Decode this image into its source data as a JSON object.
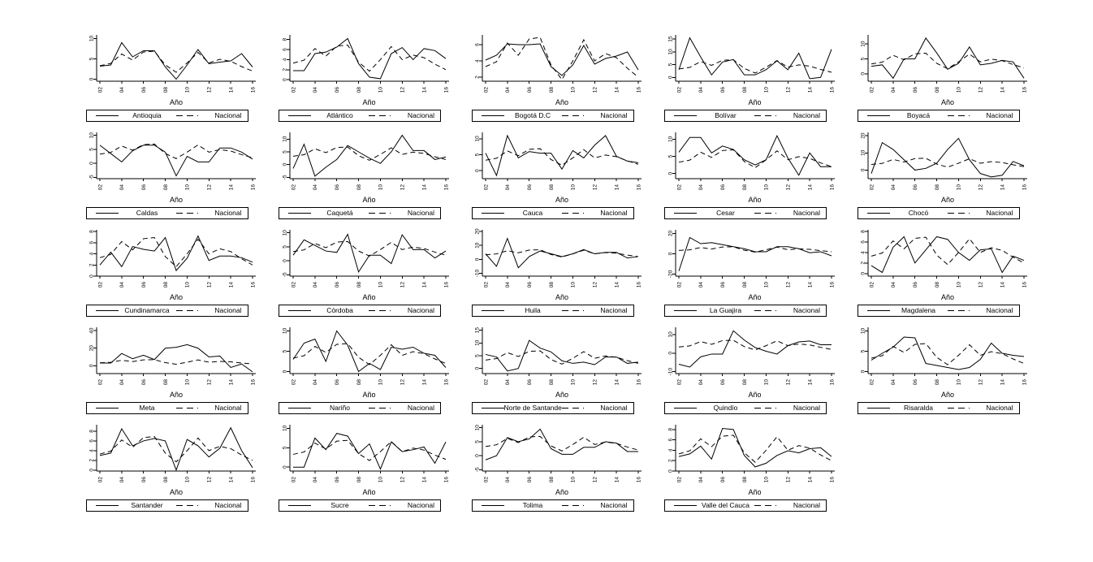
{
  "figure": {
    "background": "#ffffff",
    "line_color": "#000000",
    "grid": {
      "rows": 5,
      "cols": 5,
      "filled_panels": 24
    }
  },
  "chart_data": {
    "type": "line",
    "title": "",
    "x_label": "Año",
    "x_tick_labels": [
      "02",
      "04",
      "06",
      "08",
      "10",
      "12",
      "14",
      "16"
    ],
    "years": [
      2002,
      2003,
      2004,
      2005,
      2006,
      2007,
      2008,
      2009,
      2010,
      2011,
      2012,
      2013,
      2014,
      2015,
      2016
    ],
    "legend_position": "below",
    "grid_lines": false,
    "series_styles": {
      "department": "solid",
      "nacional": "dashed"
    },
    "nacional_label": "Nacional",
    "nacional": [
      3.3,
      3.9,
      6.2,
      4.7,
      6.7,
      6.9,
      3.5,
      1.7,
      4.0,
      6.6,
      4.0,
      4.9,
      4.4,
      3.1,
      2.0
    ],
    "charts": [
      {
        "name": "Antioquia",
        "y_ticks": [
          0,
          5,
          10
        ],
        "ylim": [
          -0.5,
          10.5
        ],
        "values": [
          3.2,
          3.5,
          9.0,
          5.5,
          7.0,
          7.0,
          3.0,
          0.0,
          3.5,
          7.3,
          3.8,
          4.2,
          4.5,
          6.3,
          3.0
        ]
      },
      {
        "name": "Atlántico",
        "y_ticks": [
          0,
          2,
          4,
          6,
          8
        ],
        "ylim": [
          -0.3,
          8.6
        ],
        "values": [
          1.8,
          1.8,
          5.2,
          5.5,
          6.5,
          8.2,
          3.2,
          0.5,
          0.2,
          5.2,
          6.4,
          4.0,
          6.2,
          5.8,
          4.2
        ]
      },
      {
        "name": "Bogotá D.C",
        "y_ticks": [
          2,
          4,
          6
        ],
        "ylim": [
          1.5,
          7.0
        ],
        "values": [
          4.1,
          4.7,
          6.1,
          6.0,
          6.0,
          6.1,
          3.3,
          2.2,
          3.5,
          5.9,
          3.6,
          4.3,
          4.6,
          5.1,
          2.9
        ]
      },
      {
        "name": "Bolívar",
        "y_ticks": [
          0,
          5,
          10,
          15
        ],
        "ylim": [
          -1.5,
          16
        ],
        "values": [
          3.0,
          15.5,
          8.0,
          1.0,
          6.0,
          7.0,
          1.0,
          1.0,
          3.0,
          6.5,
          3.0,
          9.5,
          -0.5,
          0.0,
          11.0
        ]
      },
      {
        "name": "Boyacá",
        "y_ticks": [
          0,
          5,
          10
        ],
        "ylim": [
          -2.5,
          12.5
        ],
        "values": [
          2.5,
          3.0,
          -1.5,
          5.0,
          5.0,
          12.0,
          7.0,
          1.5,
          3.5,
          9.0,
          3.0,
          3.5,
          4.5,
          4.0,
          -1.5
        ]
      },
      {
        "name": "Caldas",
        "y_ticks": [
          -5,
          0,
          5,
          10
        ],
        "ylim": [
          -5.5,
          10.5
        ],
        "values": [
          6.5,
          3.5,
          0.5,
          4.5,
          6.5,
          6.5,
          4.0,
          -4.5,
          2.5,
          0.5,
          0.5,
          5.5,
          5.5,
          4.0,
          1.5
        ]
      },
      {
        "name": "Caquetá",
        "y_ticks": [
          -5,
          0,
          5,
          10
        ],
        "ylim": [
          -5.5,
          12
        ],
        "values": [
          -1.5,
          8.0,
          -4.5,
          -1.0,
          2.0,
          7.5,
          5.0,
          2.5,
          0.5,
          5.0,
          11.5,
          5.5,
          5.5,
          2.0,
          3.0
        ]
      },
      {
        "name": "Cauca",
        "y_ticks": [
          0,
          5,
          10
        ],
        "ylim": [
          -2.5,
          11.5
        ],
        "values": [
          5.5,
          -1.5,
          11.0,
          4.0,
          6.0,
          5.5,
          5.5,
          0.5,
          6.3,
          4.0,
          8.0,
          11.0,
          4.5,
          3.0,
          2.5
        ]
      },
      {
        "name": "Cesar",
        "y_ticks": [
          0,
          5,
          10
        ],
        "ylim": [
          -1.5,
          11.5
        ],
        "values": [
          6.2,
          10.5,
          10.5,
          6.0,
          8.0,
          7.0,
          4.0,
          2.5,
          4.0,
          11.0,
          4.5,
          -0.5,
          6.0,
          2.0,
          2.0
        ]
      },
      {
        "name": "Chocó",
        "y_ticks": [
          0,
          10,
          20
        ],
        "ylim": [
          -5,
          21
        ],
        "values": [
          -2.0,
          16.0,
          12.0,
          6.0,
          0.0,
          1.0,
          4.0,
          12.0,
          18.5,
          6.0,
          -2.0,
          -4.0,
          -3.0,
          5.0,
          2.5
        ]
      },
      {
        "name": "Cundinamarca",
        "y_ticks": [
          0,
          2,
          4,
          6,
          8
        ],
        "ylim": [
          0,
          8
        ],
        "values": [
          2.0,
          4.3,
          1.7,
          5.3,
          4.8,
          4.5,
          6.9,
          1.0,
          3.2,
          7.2,
          2.8,
          3.6,
          3.6,
          3.3,
          2.5
        ]
      },
      {
        "name": "Córdoba",
        "y_ticks": [
          -5,
          0,
          5,
          10
        ],
        "ylim": [
          -5.5,
          10.5
        ],
        "values": [
          2.0,
          7.5,
          5.5,
          3.5,
          3.0,
          9.5,
          -4.0,
          2.0,
          2.0,
          -1.0,
          9.3,
          4.0,
          4.0,
          1.0,
          3.5
        ]
      },
      {
        "name": "Huila",
        "y_ticks": [
          -10,
          0,
          10,
          20
        ],
        "ylim": [
          -12,
          20
        ],
        "values": [
          4.0,
          -5.0,
          15.0,
          -6.0,
          2.0,
          6.0,
          4.0,
          2.0,
          4.0,
          7.0,
          4.0,
          5.0,
          5.0,
          1.0,
          2.0
        ]
      },
      {
        "name": "La Guajira",
        "y_ticks": [
          -20,
          0,
          20
        ],
        "ylim": [
          -22,
          22
        ],
        "values": [
          -17.0,
          16.0,
          10.0,
          11.0,
          9.0,
          7.0,
          5.0,
          2.0,
          2.0,
          7.0,
          7.0,
          5.0,
          1.0,
          2.0,
          -2.0
        ]
      },
      {
        "name": "Magdalena",
        "y_ticks": [
          0,
          2,
          4,
          6,
          8
        ],
        "ylim": [
          -0.5,
          8
        ],
        "values": [
          1.5,
          0.2,
          5.0,
          7.0,
          2.0,
          4.5,
          7.0,
          6.5,
          4.0,
          2.5,
          4.5,
          4.7,
          0.2,
          3.3,
          2.5
        ]
      },
      {
        "name": "Meta",
        "y_ticks": [
          0,
          20,
          40
        ],
        "ylim": [
          -9,
          42
        ],
        "values": [
          3.0,
          3.0,
          14.0,
          8.0,
          12.0,
          7.0,
          20.0,
          21.0,
          24.0,
          20.0,
          10.0,
          11.0,
          -2.0,
          2.0,
          -7.0
        ]
      },
      {
        "name": "Nariño",
        "y_ticks": [
          0,
          5,
          10
        ],
        "ylim": [
          -0.5,
          10.5
        ],
        "values": [
          3.0,
          7.0,
          8.0,
          2.5,
          10.0,
          6.5,
          0.0,
          2.0,
          0.5,
          6.0,
          5.5,
          6.0,
          4.5,
          4.0,
          1.0
        ]
      },
      {
        "name": "Norte de Santander",
        "y_ticks": [
          0,
          5,
          10,
          15
        ],
        "ylim": [
          -2,
          15.5
        ],
        "values": [
          5.5,
          4.5,
          -1.0,
          0.0,
          11.0,
          8.0,
          6.5,
          3.0,
          2.0,
          2.5,
          1.5,
          4.5,
          4.5,
          2.0,
          2.5
        ]
      },
      {
        "name": "Quindío",
        "y_ticks": [
          -10,
          0,
          10
        ],
        "ylim": [
          -11,
          13
        ],
        "values": [
          -6.0,
          -7.5,
          -2.0,
          -0.5,
          -0.5,
          12.0,
          7.0,
          3.0,
          1.0,
          -0.5,
          4.0,
          6.0,
          6.5,
          4.5,
          4.5
        ]
      },
      {
        "name": "Risaralda",
        "y_ticks": [
          0,
          5,
          10
        ],
        "ylim": [
          -0.5,
          10.5
        ],
        "values": [
          2.8,
          4.5,
          6.0,
          8.5,
          8.3,
          2.0,
          1.5,
          1.0,
          0.5,
          1.0,
          3.0,
          7.0,
          4.5,
          4.0,
          3.7
        ]
      },
      {
        "name": "Santander",
        "y_ticks": [
          0,
          2,
          4,
          6,
          8
        ],
        "ylim": [
          -0.2,
          9
        ],
        "values": [
          3.0,
          3.5,
          8.5,
          5.0,
          6.0,
          6.5,
          6.0,
          0.0,
          6.3,
          5.0,
          2.7,
          4.5,
          8.7,
          4.0,
          0.5
        ]
      },
      {
        "name": "Sucre",
        "y_ticks": [
          0,
          5,
          10
        ],
        "ylim": [
          -1,
          10.5
        ],
        "values": [
          0.0,
          0.0,
          7.5,
          4.5,
          8.7,
          8.0,
          3.5,
          6.0,
          -0.5,
          6.5,
          4.0,
          4.5,
          5.2,
          1.0,
          6.5
        ]
      },
      {
        "name": "Tolima",
        "y_ticks": [
          -5,
          0,
          5,
          10
        ],
        "ylim": [
          -5.5,
          10.5
        ],
        "values": [
          -1.5,
          0.0,
          6.5,
          5.0,
          6.0,
          9.5,
          2.5,
          0.5,
          0.5,
          3.0,
          3.0,
          5.0,
          4.5,
          1.5,
          1.5
        ]
      },
      {
        "name": "Valle del Cauca",
        "y_ticks": [
          0,
          2,
          4,
          6,
          8
        ],
        "ylim": [
          0,
          8.6
        ],
        "values": [
          2.8,
          3.3,
          4.8,
          2.3,
          8.2,
          8.0,
          3.0,
          0.8,
          1.5,
          3.0,
          3.9,
          3.5,
          4.3,
          4.5,
          2.8
        ]
      }
    ]
  }
}
